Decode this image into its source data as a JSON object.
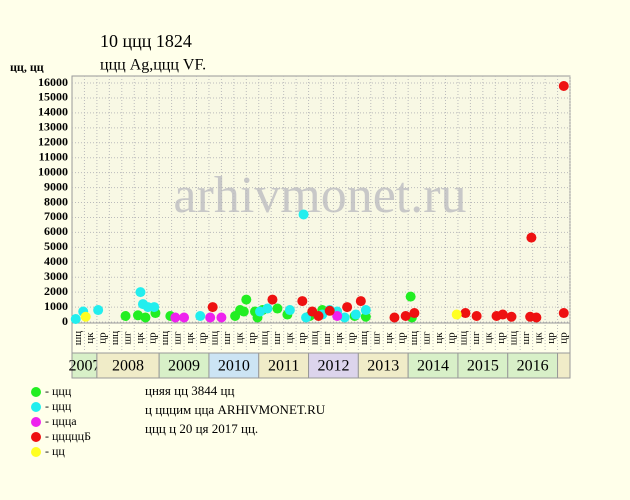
{
  "chart_data": {
    "type": "scatter",
    "title": "10 ццц 1824",
    "subtitle": "ццц Ag,ццц VF.",
    "y_label": "цц, цц",
    "watermark": "arhivmonet.ru",
    "xlim": [
      0,
      40
    ],
    "ylim": [
      0,
      16000
    ],
    "yticks": [
      0,
      1000,
      2000,
      3000,
      4000,
      5000,
      6000,
      7000,
      8000,
      9000,
      10000,
      11000,
      12000,
      13000,
      14000,
      15000,
      16000
    ],
    "grid": true,
    "quarters": [
      "шц",
      "цк",
      "цр",
      "шц",
      "шг",
      "цк",
      "цр",
      "шц",
      "шг",
      "цк",
      "цр",
      "шц",
      "шг",
      "цк",
      "цр",
      "шц",
      "шг",
      "цк",
      "цр",
      "шц",
      "шг",
      "цк",
      "цр",
      "шц",
      "шг",
      "цк",
      "цр",
      "шц",
      "шг",
      "цк",
      "цр",
      "шц",
      "шг",
      "цк",
      "цр",
      "шц",
      "шг",
      "цк",
      "цр",
      "цр"
    ],
    "years": [
      {
        "label": "2007",
        "span": 2,
        "color": "#d8f0c8"
      },
      {
        "label": "2008",
        "span": 5,
        "color": "#f0ecc8"
      },
      {
        "label": "2009",
        "span": 4,
        "color": "#d8f0c8"
      },
      {
        "label": "2010",
        "span": 4,
        "color": "#cce4f4"
      },
      {
        "label": "2011",
        "span": 4,
        "color": "#f0ecc8"
      },
      {
        "label": "2012",
        "span": 4,
        "color": "#dcd4ec"
      },
      {
        "label": "2013",
        "span": 4,
        "color": "#f0ecc8"
      },
      {
        "label": "2014",
        "span": 4,
        "color": "#d8f0c8"
      },
      {
        "label": "2015",
        "span": 4,
        "color": "#d8f0c8"
      },
      {
        "label": "2016",
        "span": 4,
        "color": "#d8f0c8"
      },
      {
        "label": null,
        "span": 1,
        "color": "#f0ecc8"
      }
    ],
    "series": [
      {
        "name": "- ццц",
        "color": "#22ee22",
        "x": [
          4.3,
          5.3,
          5.9,
          6.7,
          7.9,
          13.1,
          13.5,
          14,
          13.8,
          14.7,
          14.9,
          15.3,
          16.5,
          17.3,
          19.1,
          20.1,
          22.7,
          23.6,
          27.2,
          27.3
        ],
        "values": [
          400,
          450,
          300,
          600,
          400,
          400,
          800,
          1500,
          700,
          700,
          300,
          800,
          900,
          500,
          400,
          800,
          400,
          350,
          1700,
          300
        ]
      },
      {
        "name": "- ццц",
        "color": "#22eeee",
        "x": [
          0.3,
          0.9,
          2.1,
          5.5,
          5.7,
          6.1,
          6.6,
          10.3,
          15.1,
          15.7,
          17.5,
          18.6,
          18.8,
          20.1,
          20.7,
          21.3,
          21.9,
          22.8,
          23.6
        ],
        "values": [
          200,
          700,
          800,
          2000,
          1200,
          1000,
          1000,
          400,
          700,
          900,
          800,
          7200,
          300,
          500,
          800,
          700,
          300,
          500,
          800
        ]
      },
      {
        "name": "- ццца",
        "color": "#ee22ee",
        "x": [
          8.3,
          9,
          11.1,
          12,
          21.3
        ],
        "values": [
          300,
          300,
          300,
          300,
          400
        ]
      },
      {
        "name": "- цццццБ",
        "color": "#ee1111",
        "x": [
          11.3,
          16.1,
          18.5,
          19.3,
          19.8,
          20.7,
          22.1,
          23.2,
          25.9,
          26.8,
          27.5,
          31.6,
          32.5,
          34.1,
          34.6,
          35.3,
          36.8,
          37.3,
          36.9,
          39.5,
          39.5
        ],
        "values": [
          1000,
          1500,
          1400,
          700,
          400,
          750,
          1000,
          1400,
          300,
          400,
          600,
          600,
          400,
          400,
          500,
          350,
          350,
          300,
          5650,
          15800,
          600
        ]
      },
      {
        "name": "- цц",
        "color": "#ffff22",
        "x": [
          1.1,
          30.9
        ],
        "values": [
          350,
          500
        ]
      }
    ],
    "notes": [
      "цняя цц 3844 цц",
      "ц цццим цца ARHIVMONET.RU",
      "ццц ц 20 ця 2017 цц."
    ]
  }
}
